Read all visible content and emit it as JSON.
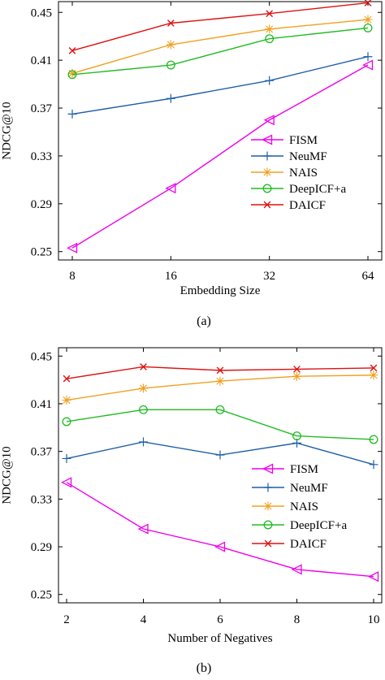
{
  "chart_data": [
    {
      "type": "line",
      "caption": "(a)",
      "xlabel": "Embedding Size",
      "ylabel": "NDCG@10",
      "x": [
        8,
        16,
        32,
        64
      ],
      "x_tick_labels": [
        "8",
        "16",
        "32",
        "64"
      ],
      "yticks": [
        0.25,
        0.29,
        0.33,
        0.37,
        0.41,
        0.45
      ],
      "y_tick_labels": [
        "0.25",
        "0.29",
        "0.33",
        "0.37",
        "0.41",
        "0.45"
      ],
      "ylim": [
        0.243,
        0.459
      ],
      "grid": false,
      "legend_position": "center-right",
      "series": [
        {
          "name": "FISM",
          "color": "#ee00ee",
          "marker": "triangle-left",
          "values": [
            0.253,
            0.303,
            0.36,
            0.406
          ]
        },
        {
          "name": "NeuMF",
          "color": "#1f5fa8",
          "marker": "plus",
          "values": [
            0.365,
            0.378,
            0.393,
            0.413
          ]
        },
        {
          "name": "NAIS",
          "color": "#f0a020",
          "marker": "asterisk",
          "values": [
            0.399,
            0.423,
            0.436,
            0.444
          ]
        },
        {
          "name": "DeepICF+a",
          "color": "#22bb22",
          "marker": "circle",
          "values": [
            0.398,
            0.406,
            0.428,
            0.437
          ]
        },
        {
          "name": "DAICF",
          "color": "#dd1111",
          "marker": "x",
          "values": [
            0.418,
            0.441,
            0.449,
            0.458
          ]
        }
      ]
    },
    {
      "type": "line",
      "caption": "(b)",
      "xlabel": "Number of Negatives",
      "ylabel": "NDCG@10",
      "x": [
        2,
        4,
        6,
        8,
        10
      ],
      "x_tick_labels": [
        "2",
        "4",
        "6",
        "8",
        "10"
      ],
      "yticks": [
        0.25,
        0.29,
        0.33,
        0.37,
        0.41,
        0.45
      ],
      "y_tick_labels": [
        "0.25",
        "0.29",
        "0.33",
        "0.37",
        "0.41",
        "0.45"
      ],
      "ylim": [
        0.243,
        0.457
      ],
      "grid": false,
      "legend_position": "lower-right",
      "series": [
        {
          "name": "FISM",
          "color": "#ee00ee",
          "marker": "triangle-left",
          "values": [
            0.344,
            0.305,
            0.29,
            0.271,
            0.265
          ]
        },
        {
          "name": "NeuMF",
          "color": "#1f5fa8",
          "marker": "plus",
          "values": [
            0.364,
            0.378,
            0.367,
            0.377,
            0.359
          ]
        },
        {
          "name": "NAIS",
          "color": "#f0a020",
          "marker": "asterisk",
          "values": [
            0.413,
            0.423,
            0.429,
            0.433,
            0.434
          ]
        },
        {
          "name": "DeepICF+a",
          "color": "#22bb22",
          "marker": "circle",
          "values": [
            0.395,
            0.405,
            0.405,
            0.383,
            0.38
          ]
        },
        {
          "name": "DAICF",
          "color": "#dd1111",
          "marker": "x",
          "values": [
            0.431,
            0.441,
            0.438,
            0.439,
            0.44
          ]
        }
      ]
    }
  ]
}
